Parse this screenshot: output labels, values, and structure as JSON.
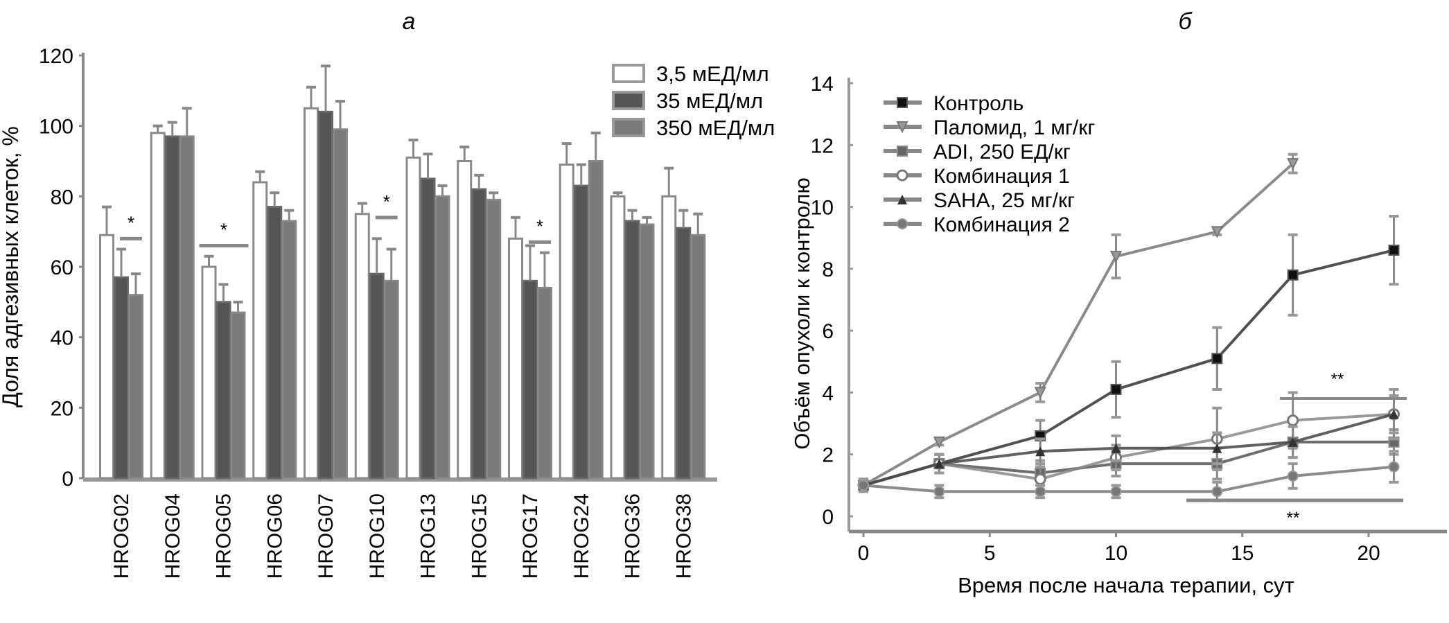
{
  "chart_data": [
    {
      "type": "bar",
      "panel_label": "а",
      "title": "",
      "xlabel": "",
      "ylabel": "Доля адгезивных клеток, %",
      "ylim": [
        0,
        120
      ],
      "yticks": [
        "0",
        "20",
        "40",
        "60",
        "80",
        "100",
        "120"
      ],
      "legend_position": "top-right",
      "categories": [
        "HROG02",
        "HROG04",
        "HROG05",
        "HROG06",
        "HROG07",
        "HROG10",
        "HROG13",
        "HROG15",
        "HROG17",
        "HROG24",
        "HROG36",
        "HROG38"
      ],
      "series": [
        {
          "name": "3,5 мЕД/мл",
          "color": "#ffffff",
          "values": [
            69,
            98,
            60,
            84,
            105,
            75,
            91,
            90,
            68,
            89,
            80,
            80
          ],
          "errors": [
            8,
            2,
            3,
            3,
            6,
            3,
            5,
            4,
            6,
            6,
            1,
            8
          ]
        },
        {
          "name": "35 мЕД/мл",
          "color": "#555555",
          "values": [
            57,
            97,
            50,
            77,
            104,
            58,
            85,
            82,
            56,
            83,
            73,
            71
          ],
          "errors": [
            8,
            4,
            5,
            4,
            13,
            10,
            7,
            4,
            10,
            6,
            3,
            5
          ]
        },
        {
          "name": "350 мЕД/мл",
          "color": "#7a7a7a",
          "values": [
            52,
            97,
            47,
            73,
            99,
            56,
            80,
            79,
            54,
            90,
            72,
            69
          ],
          "errors": [
            6,
            8,
            3,
            3,
            8,
            9,
            3,
            2,
            10,
            8,
            2,
            6
          ]
        }
      ],
      "annotations": [
        {
          "text": "*",
          "category": "HROG02"
        },
        {
          "text": "*",
          "category": "HROG05"
        },
        {
          "text": "*",
          "category": "HROG10"
        },
        {
          "text": "*",
          "category": "HROG17"
        }
      ]
    },
    {
      "type": "line",
      "panel_label": "б",
      "title": "",
      "xlabel": "Время после начала терапии, сут",
      "ylabel": "Объём опухоли к контролю",
      "xlim": [
        0,
        22
      ],
      "ylim": [
        0,
        14
      ],
      "xticks": [
        "0",
        "5",
        "10",
        "15",
        "20"
      ],
      "yticks": [
        "0",
        "2",
        "4",
        "6",
        "8",
        "10",
        "12",
        "14"
      ],
      "legend_position": "top-left",
      "x": [
        0,
        3,
        7,
        10,
        14,
        17,
        21
      ],
      "series": [
        {
          "name": "Контроль",
          "marker": "square-filled",
          "x": [
            0,
            3,
            7,
            10,
            14,
            17,
            21
          ],
          "values": [
            1.0,
            1.7,
            2.6,
            4.1,
            5.1,
            7.8,
            8.6
          ],
          "errors": [
            0.2,
            0.3,
            0.5,
            0.9,
            1.0,
            1.3,
            1.1
          ]
        },
        {
          "name": "Паломид, 1 мг/кг",
          "marker": "triangle-down",
          "x": [
            0,
            3,
            7,
            10,
            14,
            17
          ],
          "values": [
            1.0,
            2.4,
            4.0,
            8.4,
            9.2,
            11.4
          ],
          "errors": [
            0.2,
            0.1,
            0.3,
            0.7,
            0.1,
            0.3
          ]
        },
        {
          "name": "ADI, 250 ЕД/кг",
          "marker": "square-gray",
          "x": [
            0,
            3,
            7,
            10,
            14,
            17,
            21
          ],
          "values": [
            1.0,
            1.7,
            1.4,
            1.7,
            1.7,
            2.4,
            2.4
          ],
          "errors": [
            0.2,
            0.3,
            0.4,
            0.4,
            0.5,
            0.5,
            0.4
          ]
        },
        {
          "name": "Комбинация 1",
          "marker": "circle-open",
          "x": [
            0,
            3,
            7,
            10,
            14,
            17,
            21
          ],
          "values": [
            1.0,
            1.7,
            1.2,
            1.9,
            2.5,
            3.1,
            3.3
          ],
          "errors": [
            0.2,
            0.3,
            0.4,
            0.4,
            1.0,
            0.9,
            0.8
          ]
        },
        {
          "name": "SAHA, 25 мг/кг",
          "marker": "triangle-up",
          "x": [
            0,
            3,
            7,
            10,
            14,
            17,
            21
          ],
          "values": [
            1.0,
            1.7,
            2.1,
            2.2,
            2.2,
            2.4,
            3.3
          ],
          "errors": [
            0.2,
            0.3,
            0.4,
            0.4,
            0.5,
            0.5,
            0.6
          ]
        },
        {
          "name": "Комбинация 2",
          "marker": "circle-gray",
          "x": [
            0,
            3,
            7,
            10,
            14,
            17,
            21
          ],
          "values": [
            1.0,
            0.8,
            0.8,
            0.8,
            0.8,
            1.3,
            1.6
          ],
          "errors": [
            0.2,
            0.2,
            0.2,
            0.2,
            0.3,
            0.4,
            0.5
          ]
        }
      ],
      "annotations": [
        {
          "text": "**",
          "position": "upper bracket, days 17–21"
        },
        {
          "text": "**",
          "position": "lower bracket, days 13–21"
        }
      ]
    }
  ]
}
